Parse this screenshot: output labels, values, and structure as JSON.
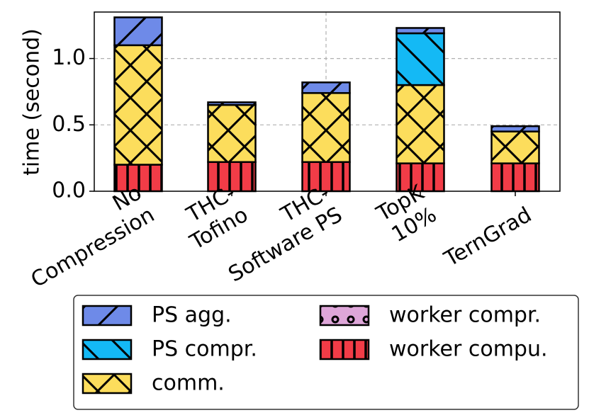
{
  "chart_data": {
    "type": "bar",
    "stacked": true,
    "title": "",
    "ylabel": "time (second)",
    "xlabel": "",
    "ylim": [
      0,
      1.35
    ],
    "yticks": [
      "0.0",
      "0.5",
      "1.0"
    ],
    "grid": true,
    "legend_position": "bottom",
    "categories": [
      [
        "No",
        "Compression"
      ],
      [
        "THC-",
        "Tofino"
      ],
      [
        "THC-",
        "Software PS"
      ],
      [
        "TopK",
        "10%"
      ],
      [
        "TernGrad"
      ]
    ],
    "series": [
      {
        "name": "worker compu.",
        "color": "#f23c47",
        "values": [
          0.2,
          0.22,
          0.22,
          0.21,
          0.21
        ]
      },
      {
        "name": "worker compr.",
        "color": "#dea6d9",
        "values": [
          0,
          0,
          0,
          0,
          0
        ]
      },
      {
        "name": "comm.",
        "color": "#fcdd5c",
        "values": [
          0.9,
          0.43,
          0.52,
          0.59,
          0.24
        ]
      },
      {
        "name": "PS compr.",
        "color": "#14b9f5",
        "values": [
          0,
          0,
          0,
          0.39,
          0
        ]
      },
      {
        "name": "PS agg.",
        "color": "#6e8ae8",
        "values": [
          0.21,
          0.02,
          0.08,
          0.04,
          0.04
        ]
      }
    ],
    "legend_order": [
      "PS agg.",
      "PS compr.",
      "comm.",
      "worker compr.",
      "worker compu."
    ]
  }
}
